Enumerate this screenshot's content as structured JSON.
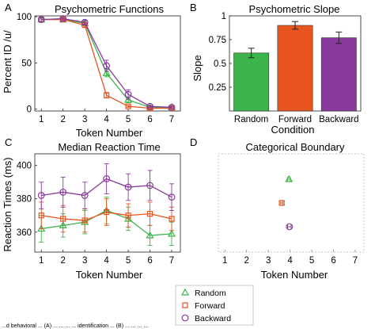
{
  "colors": {
    "random": "#3cb44b",
    "forward": "#e8541e",
    "backward": "#8a3a9e",
    "axis": "#222222",
    "error": "#222222"
  },
  "legend": {
    "placement": "bottom-center",
    "entries": [
      {
        "label": "Random",
        "marker": "triangle",
        "color": "#3cb44b"
      },
      {
        "label": "Forward",
        "marker": "square",
        "color": "#e8541e"
      },
      {
        "label": "Backward",
        "marker": "circle",
        "color": "#8a3a9e"
      }
    ]
  },
  "caption": "...d behavioral ... (A) ... ... ... ... identification ... (B) ... ... ... ...",
  "chart_data": [
    {
      "id": "A",
      "panel_letter": "A",
      "type": "line",
      "title": "Psychometric Functions",
      "xlabel": "Token Number",
      "ylabel": "Percent ID /u/",
      "xlim": [
        0.7,
        7.4
      ],
      "ylim": [
        -2,
        101
      ],
      "xticks": [
        1,
        2,
        3,
        4,
        5,
        6,
        7
      ],
      "yticks": [
        0,
        50,
        100
      ],
      "ytick_labels": [
        "0",
        "50",
        "100"
      ],
      "grid": false,
      "x": [
        1,
        2,
        3,
        4,
        5,
        6,
        7
      ],
      "series": [
        {
          "key": "random",
          "marker": "triangle",
          "values": [
            97,
            97,
            93,
            39,
            10,
            2,
            2
          ],
          "errors": [
            2,
            2,
            2,
            4,
            3,
            1,
            1
          ]
        },
        {
          "key": "forward",
          "marker": "square",
          "values": [
            97,
            97,
            91,
            15,
            3,
            1,
            1
          ],
          "errors": [
            2,
            2,
            2,
            3,
            1,
            1,
            1
          ]
        },
        {
          "key": "backward",
          "marker": "circle",
          "values": [
            97,
            98,
            94,
            47,
            16,
            3,
            2
          ],
          "errors": [
            2,
            2,
            2,
            6,
            5,
            1,
            1
          ]
        }
      ]
    },
    {
      "id": "B",
      "panel_letter": "B",
      "type": "bar",
      "title": "Psychometric Slope",
      "xlabel": "Condition",
      "ylabel": "Slope",
      "categories": [
        "Random",
        "Forward",
        "Backward"
      ],
      "values": [
        0.61,
        0.9,
        0.77
      ],
      "errors": [
        0.05,
        0.04,
        0.06
      ],
      "bar_colors": [
        "#3cb44b",
        "#e8541e",
        "#8a3a9e"
      ],
      "ylim": [
        0.0,
        1.0
      ],
      "yticks": [
        0.25,
        0.5,
        0.75,
        1
      ],
      "ytick_labels": [
        "0.25",
        "0.5",
        "0.75",
        "1"
      ],
      "grid": false
    },
    {
      "id": "C",
      "panel_letter": "C",
      "type": "line",
      "title": "Median Reaction Time",
      "xlabel": "Token Number",
      "ylabel": "Reaction Times (ms)",
      "xlim": [
        0.7,
        7.4
      ],
      "ylim": [
        348,
        407
      ],
      "xticks": [
        1,
        2,
        3,
        4,
        5,
        6,
        7
      ],
      "yticks": [
        360,
        380,
        400
      ],
      "ytick_labels": [
        "360",
        "380",
        "400"
      ],
      "grid": false,
      "x": [
        1,
        2,
        3,
        4,
        5,
        6,
        7
      ],
      "series": [
        {
          "key": "random",
          "marker": "triangle",
          "values": [
            362,
            364,
            366,
            373,
            368,
            358,
            359
          ],
          "errors": [
            8,
            7,
            7,
            8,
            7,
            6,
            7
          ]
        },
        {
          "key": "forward",
          "marker": "square",
          "values": [
            370,
            368,
            367,
            372,
            370,
            371,
            368
          ],
          "errors": [
            8,
            8,
            7,
            8,
            7,
            7,
            7
          ]
        },
        {
          "key": "backward",
          "marker": "circle",
          "values": [
            382,
            384,
            382,
            392,
            387,
            388,
            381
          ],
          "errors": [
            8,
            9,
            8,
            9,
            8,
            9,
            8
          ]
        }
      ]
    },
    {
      "id": "D",
      "panel_letter": "D",
      "type": "scatter",
      "title": "Categorical Boundary",
      "xlabel": "Token Number",
      "ylabel": "",
      "xlim": [
        0.7,
        7.4
      ],
      "xticks": [
        1,
        2,
        3,
        4,
        5,
        6,
        7
      ],
      "yticks": [],
      "grid": false,
      "series": [
        {
          "key": "random",
          "marker": "triangle",
          "x": 3.95,
          "xerr": 0.06,
          "level": 3
        },
        {
          "key": "forward",
          "marker": "square",
          "x": 3.62,
          "xerr": 0.05,
          "level": 2
        },
        {
          "key": "backward",
          "marker": "circle",
          "x": 3.97,
          "xerr": 0.08,
          "level": 1
        }
      ]
    }
  ]
}
